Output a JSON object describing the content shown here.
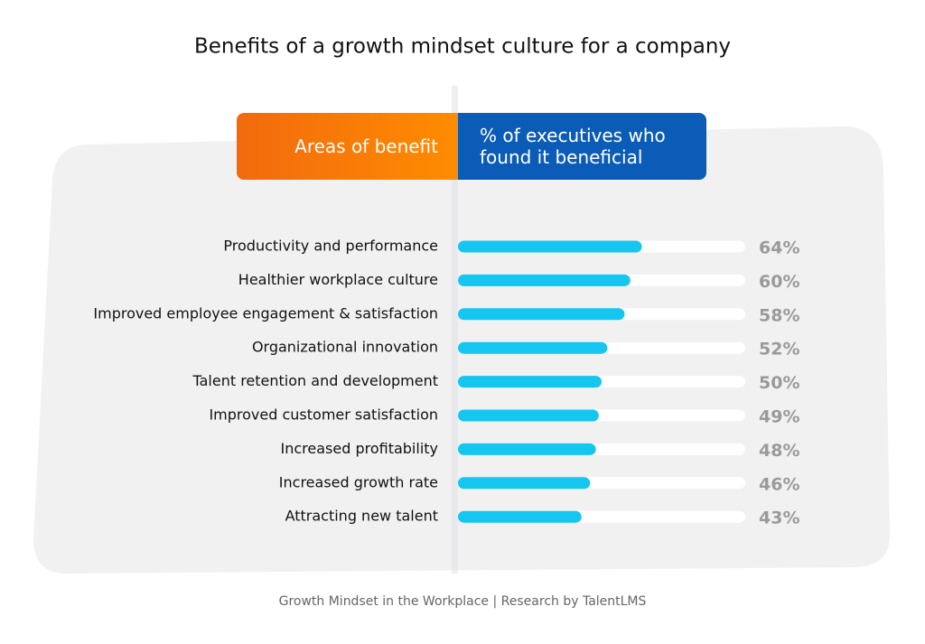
{
  "chart_data": {
    "type": "bar",
    "orientation": "horizontal",
    "title": "Benefits of a growth mindset culture for a company",
    "column_headers": [
      "Areas of benefit",
      "% of executives who found it beneficial"
    ],
    "categories": [
      "Productivity and performance",
      "Healthier workplace culture",
      "Improved employee engagement & satisfaction",
      "Organizational innovation",
      "Talent retention and development",
      "Improved customer satisfaction",
      "Increased profitability",
      "Increased growth rate",
      "Attracting new talent"
    ],
    "values": [
      64,
      60,
      58,
      52,
      50,
      49,
      48,
      46,
      43
    ],
    "value_labels": [
      "64%",
      "60%",
      "58%",
      "52%",
      "50%",
      "49%",
      "48%",
      "46%",
      "43%"
    ],
    "color": "#14c6f0",
    "xlim": [
      0,
      100
    ],
    "source": "Growth Mindset in the Workplace  |  Research by TalentLMS"
  }
}
